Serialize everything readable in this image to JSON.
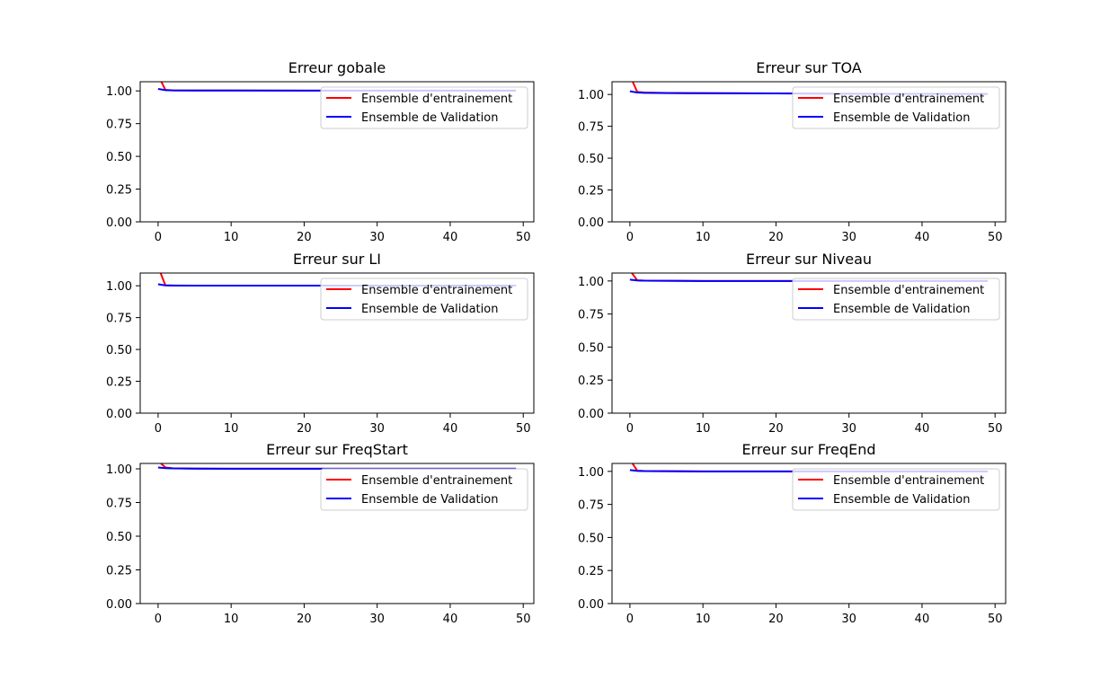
{
  "figure": {
    "colors": {
      "train": "#ff0000",
      "validation": "#0000ff",
      "axes": "#000000",
      "legend_border": "#cccccc"
    }
  },
  "chart_data": [
    {
      "type": "line",
      "title": "Erreur gobale",
      "xlabel": "",
      "ylabel": "",
      "xlim": [
        -2.45,
        51.45
      ],
      "ylim": [
        0,
        1.07
      ],
      "xticks": [
        0,
        10,
        20,
        30,
        40,
        50
      ],
      "xtick_labels": [
        "0",
        "10",
        "20",
        "30",
        "40",
        "50"
      ],
      "yticks": [
        0,
        0.25,
        0.5,
        0.75,
        1.0
      ],
      "ytick_labels": [
        "0.00",
        "0.25",
        "0.50",
        "0.75",
        "1.00"
      ],
      "grid": false,
      "legend": "upper right",
      "series": [
        {
          "name": "Ensemble d'entrainement",
          "color": "#ff0000",
          "x": [
            0,
            1,
            2,
            5,
            10,
            20,
            30,
            40,
            49
          ],
          "y": [
            1.12,
            1.008,
            1.004,
            1.003,
            1.003,
            1.002,
            1.002,
            1.002,
            1.002
          ]
        },
        {
          "name": "Ensemble de Validation",
          "color": "#0000ff",
          "x": [
            0,
            1,
            2,
            5,
            10,
            20,
            30,
            40,
            49
          ],
          "y": [
            1.015,
            1.006,
            1.004,
            1.003,
            1.003,
            1.002,
            1.002,
            1.002,
            1.002
          ]
        }
      ]
    },
    {
      "type": "line",
      "title": "Erreur sur TOA",
      "xlabel": "",
      "ylabel": "",
      "xlim": [
        -2.45,
        51.45
      ],
      "ylim": [
        0,
        1.1
      ],
      "xticks": [
        0,
        10,
        20,
        30,
        40,
        50
      ],
      "xtick_labels": [
        "0",
        "10",
        "20",
        "30",
        "40",
        "50"
      ],
      "yticks": [
        0,
        0.25,
        0.5,
        0.75,
        1.0
      ],
      "ytick_labels": [
        "0.00",
        "0.25",
        "0.50",
        "0.75",
        "1.00"
      ],
      "grid": false,
      "legend": "upper right",
      "series": [
        {
          "name": "Ensemble d'entrainement",
          "color": "#ff0000",
          "x": [
            0,
            1,
            2,
            5,
            10,
            20,
            30,
            40,
            49
          ],
          "y": [
            1.15,
            1.02,
            1.015,
            1.012,
            1.01,
            1.008,
            1.006,
            1.005,
            1.004
          ]
        },
        {
          "name": "Ensemble de Validation",
          "color": "#0000ff",
          "x": [
            0,
            1,
            2,
            5,
            10,
            20,
            30,
            40,
            49
          ],
          "y": [
            1.025,
            1.015,
            1.013,
            1.011,
            1.01,
            1.008,
            1.006,
            1.005,
            1.004
          ]
        }
      ]
    },
    {
      "type": "line",
      "title": "Erreur sur LI",
      "xlabel": "",
      "ylabel": "",
      "xlim": [
        -2.45,
        51.45
      ],
      "ylim": [
        0,
        1.1
      ],
      "xticks": [
        0,
        10,
        20,
        30,
        40,
        50
      ],
      "xtick_labels": [
        "0",
        "10",
        "20",
        "30",
        "40",
        "50"
      ],
      "yticks": [
        0,
        0.25,
        0.5,
        0.75,
        1.0
      ],
      "ytick_labels": [
        "0.00",
        "0.25",
        "0.50",
        "0.75",
        "1.00"
      ],
      "grid": false,
      "legend": "upper right",
      "series": [
        {
          "name": "Ensemble d'entrainement",
          "color": "#ff0000",
          "x": [
            0,
            1,
            2,
            5,
            10,
            20,
            30,
            40,
            49
          ],
          "y": [
            1.15,
            1.004,
            1.002,
            1.001,
            1.001,
            1.001,
            1.001,
            1.001,
            1.001
          ]
        },
        {
          "name": "Ensemble de Validation",
          "color": "#0000ff",
          "x": [
            0,
            1,
            2,
            5,
            10,
            20,
            30,
            40,
            49
          ],
          "y": [
            1.012,
            1.003,
            1.002,
            1.001,
            1.001,
            1.001,
            1.001,
            1.001,
            1.001
          ]
        }
      ]
    },
    {
      "type": "line",
      "title": "Erreur sur Niveau",
      "xlabel": "",
      "ylabel": "",
      "xlim": [
        -2.45,
        51.45
      ],
      "ylim": [
        0,
        1.06
      ],
      "xticks": [
        0,
        10,
        20,
        30,
        40,
        50
      ],
      "xtick_labels": [
        "0",
        "10",
        "20",
        "30",
        "40",
        "50"
      ],
      "yticks": [
        0,
        0.25,
        0.5,
        0.75,
        1.0
      ],
      "ytick_labels": [
        "0.00",
        "0.25",
        "0.50",
        "0.75",
        "1.00"
      ],
      "grid": false,
      "legend": "upper right",
      "series": [
        {
          "name": "Ensemble d'entrainement",
          "color": "#ff0000",
          "x": [
            0,
            1,
            2,
            5,
            10,
            20,
            30,
            40,
            49
          ],
          "y": [
            1.08,
            1.005,
            1.002,
            1.001,
            1.0,
            1.0,
            1.0,
            1.0,
            1.0
          ]
        },
        {
          "name": "Ensemble de Validation",
          "color": "#0000ff",
          "x": [
            0,
            1,
            2,
            5,
            10,
            20,
            30,
            40,
            49
          ],
          "y": [
            1.01,
            1.004,
            1.002,
            1.001,
            1.0,
            1.0,
            1.0,
            1.0,
            1.0
          ]
        }
      ]
    },
    {
      "type": "line",
      "title": "Erreur sur FreqStart",
      "xlabel": "",
      "ylabel": "",
      "xlim": [
        -2.45,
        51.45
      ],
      "ylim": [
        0,
        1.04
      ],
      "xticks": [
        0,
        10,
        20,
        30,
        40,
        50
      ],
      "xtick_labels": [
        "0",
        "10",
        "20",
        "30",
        "40",
        "50"
      ],
      "yticks": [
        0,
        0.25,
        0.5,
        0.75,
        1.0
      ],
      "ytick_labels": [
        "0.00",
        "0.25",
        "0.50",
        "0.75",
        "1.00"
      ],
      "grid": false,
      "legend": "upper right",
      "series": [
        {
          "name": "Ensemble d'entrainement",
          "color": "#ff0000",
          "x": [
            0,
            1,
            2,
            5,
            10,
            20,
            30,
            40,
            49
          ],
          "y": [
            1.06,
            1.01,
            1.004,
            1.002,
            1.001,
            1.001,
            1.001,
            1.001,
            1.001
          ]
        },
        {
          "name": "Ensemble de Validation",
          "color": "#0000ff",
          "x": [
            0,
            1,
            2,
            5,
            10,
            20,
            30,
            40,
            49
          ],
          "y": [
            1.01,
            1.005,
            1.003,
            1.002,
            1.001,
            1.001,
            1.001,
            1.001,
            1.001
          ]
        }
      ]
    },
    {
      "type": "line",
      "title": "Erreur sur FreqEnd",
      "xlabel": "",
      "ylabel": "",
      "xlim": [
        -2.45,
        51.45
      ],
      "ylim": [
        0,
        1.06
      ],
      "xticks": [
        0,
        10,
        20,
        30,
        40,
        50
      ],
      "xtick_labels": [
        "0",
        "10",
        "20",
        "30",
        "40",
        "50"
      ],
      "yticks": [
        0,
        0.25,
        0.5,
        0.75,
        1.0
      ],
      "ytick_labels": [
        "0.00",
        "0.25",
        "0.50",
        "0.75",
        "1.00"
      ],
      "grid": false,
      "legend": "upper right",
      "series": [
        {
          "name": "Ensemble d'entrainement",
          "color": "#ff0000",
          "x": [
            0,
            1,
            2,
            5,
            10,
            20,
            30,
            40,
            49
          ],
          "y": [
            1.09,
            1.005,
            1.002,
            1.001,
            1.0,
            1.0,
            1.0,
            1.0,
            1.0
          ]
        },
        {
          "name": "Ensemble de Validation",
          "color": "#0000ff",
          "x": [
            0,
            1,
            2,
            5,
            10,
            20,
            30,
            40,
            49
          ],
          "y": [
            1.01,
            1.004,
            1.002,
            1.001,
            1.0,
            1.0,
            1.0,
            1.0,
            1.0
          ]
        }
      ]
    }
  ]
}
